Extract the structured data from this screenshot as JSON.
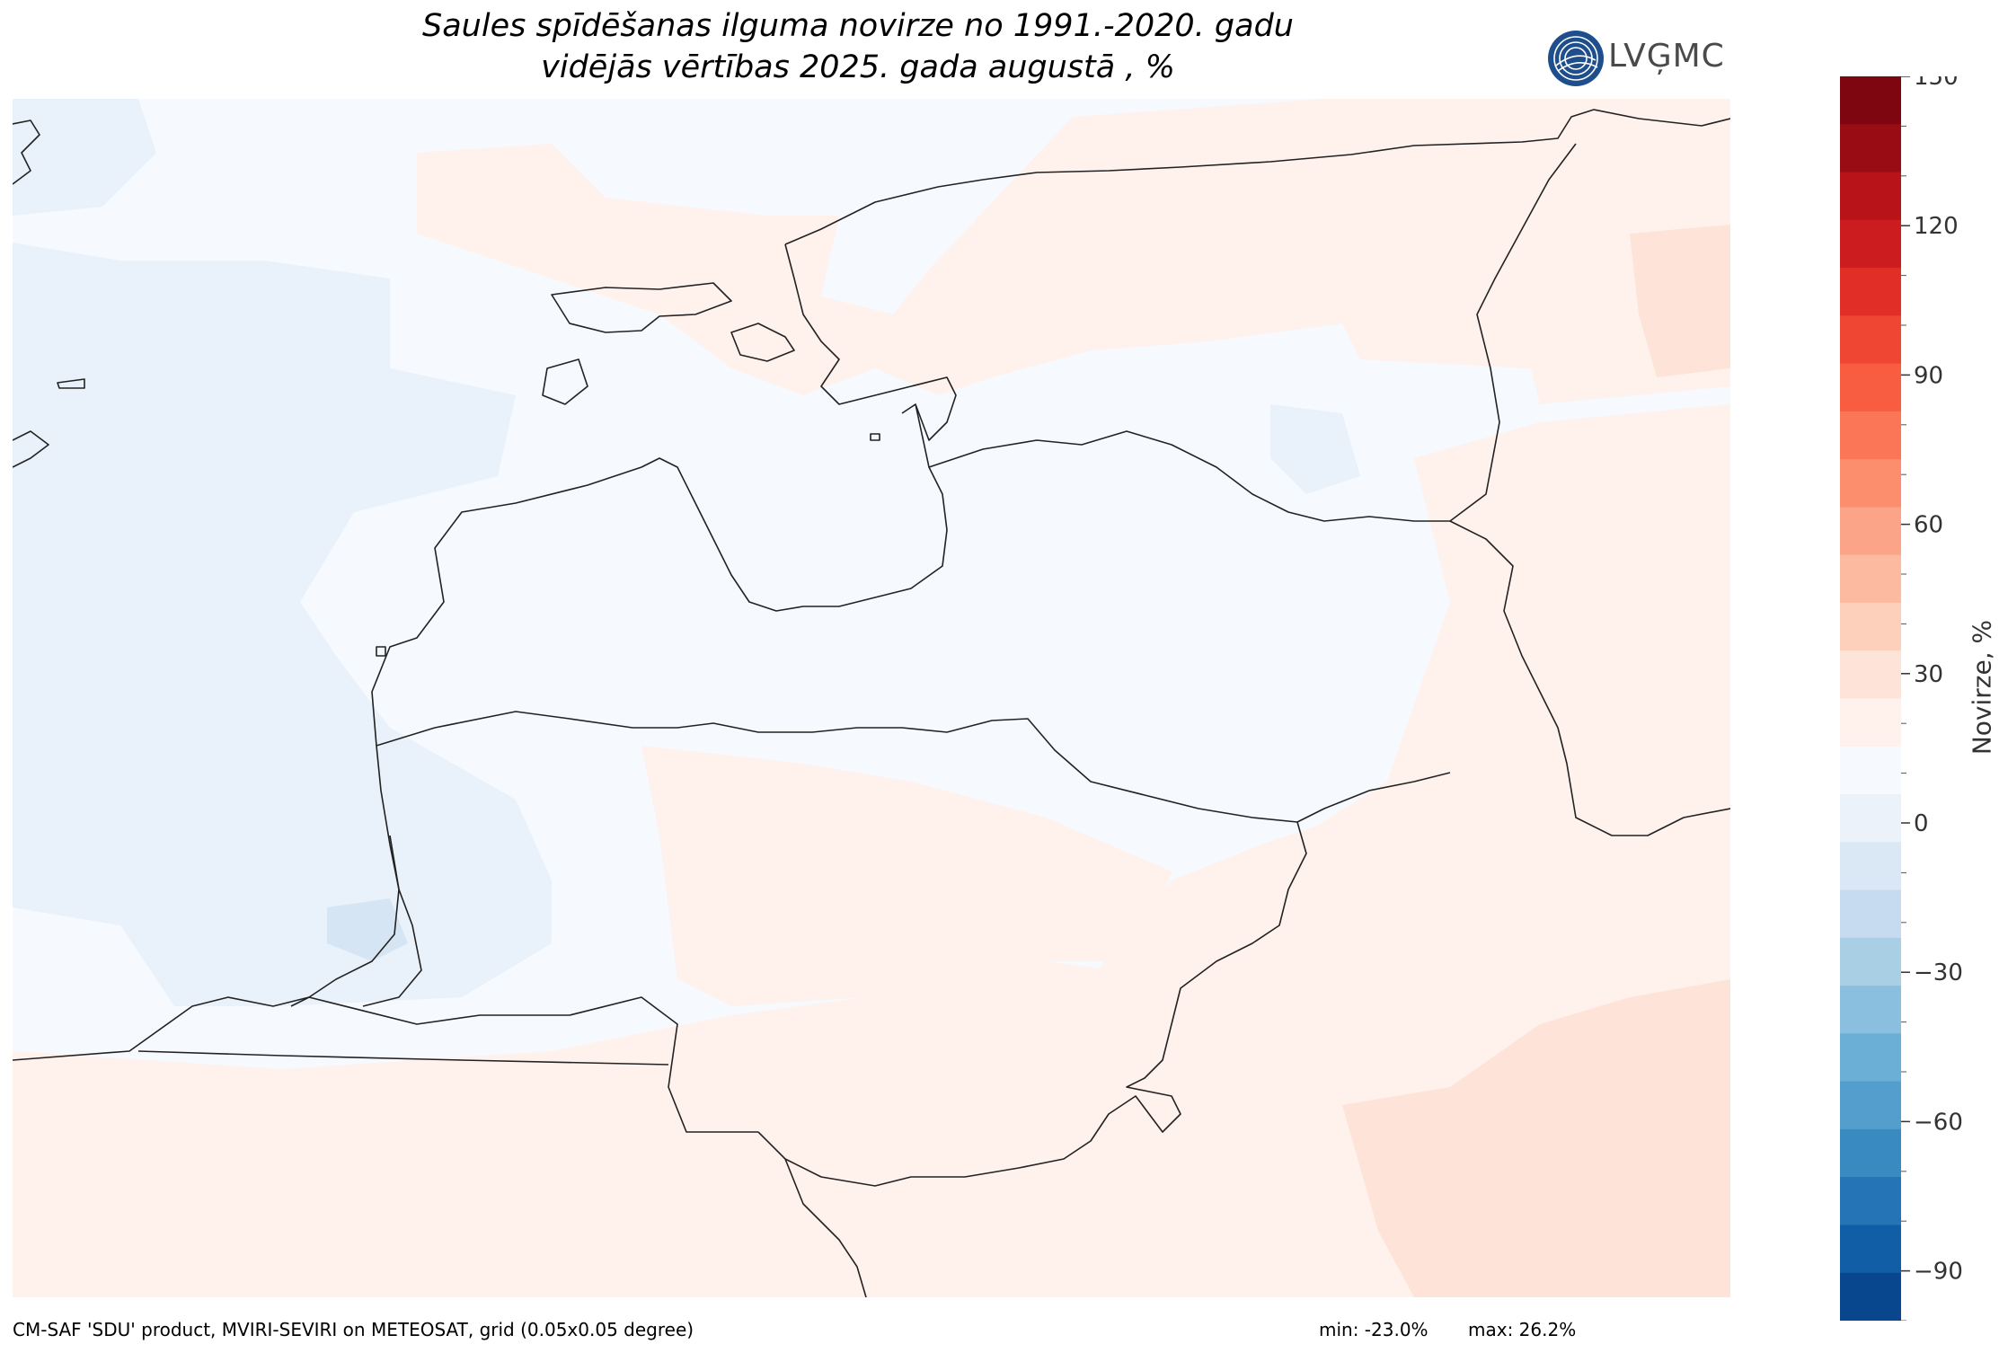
{
  "title": {
    "line1": "Saules spīdēšanas ilguma novirze no 1991.-2020. gadu",
    "line2": "vidējās vērtības 2025. gada augustā , %"
  },
  "logo": {
    "text": "LVĢMC",
    "icon": "lvgmc-logo-icon",
    "color": "#1f4e8c"
  },
  "colorbar": {
    "label": "Novirze, %",
    "min": -100,
    "max": 150,
    "step": 10,
    "ticks": [
      "150",
      "120",
      "90",
      "60",
      "30",
      "0",
      "−30",
      "−60",
      "−90"
    ],
    "tick_values": [
      150,
      120,
      90,
      60,
      30,
      0,
      -30,
      -60,
      -90
    ],
    "colors": [
      "#08478d",
      "#125ea6",
      "#2474b6",
      "#3a8ac2",
      "#539ecd",
      "#6baed6",
      "#8bbfdf",
      "#a9cfe5",
      "#c6dbef",
      "#dae7f5",
      "#ebf2fa",
      "#f6f9fd",
      "#fff1ec",
      "#fee4d8",
      "#fdd0bc",
      "#fcbba1",
      "#fca487",
      "#fc8d6d",
      "#fb7656",
      "#f85d42",
      "#ef4533",
      "#e12f27",
      "#cc1c1f",
      "#b71319",
      "#9a0c14",
      "#7d0610"
    ]
  },
  "map": {
    "region": "Baltic states (Estonia, Latvia, Lithuania)",
    "field_colors": {
      "neutral": "#f6f9fd",
      "slight_positive": "#fff1ec",
      "positive": "#fee4d8",
      "slight_negative": "#e9f1fa",
      "negative": "#d6e5f4"
    },
    "coastline_color": "#222222"
  },
  "footer": {
    "source": "CM-SAF 'SDU' product, MVIRI-SEVIRI on METEOSAT, grid (0.05x0.05 degree)",
    "min": "min: -23.0%",
    "max": "max: 26.2%"
  }
}
